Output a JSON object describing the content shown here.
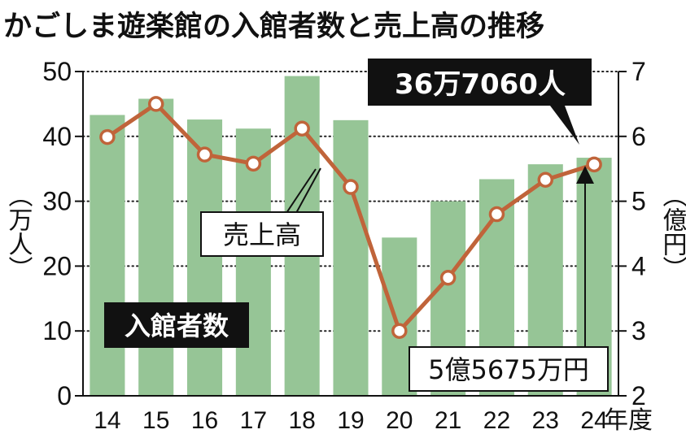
{
  "chart_data": {
    "type": "bar+line",
    "title": "かごしま遊楽館の入館者数と売上高の推移",
    "categories": [
      "14",
      "15",
      "16",
      "17",
      "18",
      "19",
      "20",
      "21",
      "22",
      "23",
      "24"
    ],
    "x_unit": "年度",
    "bar_series": {
      "name": "入館者数",
      "values": [
        43.3,
        45.8,
        42.6,
        41.2,
        49.3,
        42.5,
        24.4,
        30.0,
        33.4,
        35.7,
        36.706
      ],
      "color": "#96c596"
    },
    "line_series": {
      "name": "売上高",
      "values": [
        5.99,
        6.5,
        5.72,
        5.58,
        6.12,
        5.22,
        3.0,
        3.82,
        4.8,
        5.33,
        5.5675
      ],
      "color": "#c0643a"
    },
    "y_left": {
      "label": "（万人）",
      "min": 0,
      "max": 50,
      "ticks": [
        0,
        10,
        20,
        30,
        40,
        50
      ]
    },
    "y_right": {
      "label": "（億円）",
      "min": 2,
      "max": 7,
      "ticks": [
        2,
        3,
        4,
        5,
        6,
        7
      ]
    },
    "gridlines": "dotted",
    "annotations": {
      "visitors_2024": "36万7060人",
      "sales_2024": "5億5675万円"
    }
  }
}
